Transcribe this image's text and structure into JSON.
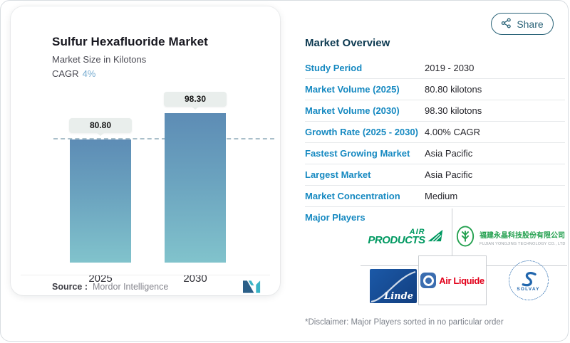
{
  "share_button": {
    "label": "Share"
  },
  "chart_card": {
    "title": "Sulfur Hexafluoride Market",
    "subtitle": "Market Size in Kilotons",
    "cagr_label": "CAGR",
    "cagr_value": "4%",
    "source_label": "Source :",
    "source_value": "Mordor Intelligence"
  },
  "chart_data": {
    "type": "bar",
    "title": "Sulfur Hexafluoride Market",
    "ylabel": "Market Size in Kilotons",
    "categories": [
      "2025",
      "2030"
    ],
    "values": [
      80.8,
      98.3
    ],
    "bar_labels": [
      "80.80",
      "98.30"
    ],
    "reference_line_value": 80.8,
    "grid": false,
    "legend": false,
    "bar_gradient_top": "#5d8cb5",
    "bar_gradient_bottom": "#81c3cc"
  },
  "overview": {
    "heading": "Market Overview",
    "rows": [
      {
        "label": "Study Period",
        "value": "2019 - 2030"
      },
      {
        "label": "Market Volume (2025)",
        "value": "80.80 kilotons"
      },
      {
        "label": "Market Volume (2030)",
        "value": "98.30 kilotons"
      },
      {
        "label": "Growth Rate (2025 - 2030)",
        "value": "4.00% CAGR"
      },
      {
        "label": "Fastest Growing Market",
        "value": "Asia Pacific"
      },
      {
        "label": "Largest Market",
        "value": "Asia Pacific"
      },
      {
        "label": "Market Concentration",
        "value": "Medium"
      }
    ],
    "major_players_label": "Major Players",
    "disclaimer": "*Disclaimer: Major Players sorted in no particular order"
  },
  "players": {
    "air_products": {
      "line1": "AIR",
      "line2": "PRODUCTS",
      "color": "#009961"
    },
    "yongjing": {
      "name_cn": "福建永晶科技股份有限公司",
      "name_en": "FUJIAN YONGJING TECHNOLOGY CO., LTD",
      "color": "#22a04e"
    },
    "linde": {
      "name": "Linde",
      "color": "#14519e"
    },
    "air_liquide": {
      "name": "Air Liquide",
      "text_color": "#e2001a",
      "icon_color": "#3a6db0"
    },
    "solvay": {
      "name": "SOLVAY",
      "color": "#2166ad"
    }
  },
  "colors": {
    "row_label_blue": "#1689c1",
    "heading_navy": "#0d3a51",
    "share_teal": "#2a6378",
    "badge_bg": "#e9eeec",
    "dashed_line": "#aabfca"
  }
}
